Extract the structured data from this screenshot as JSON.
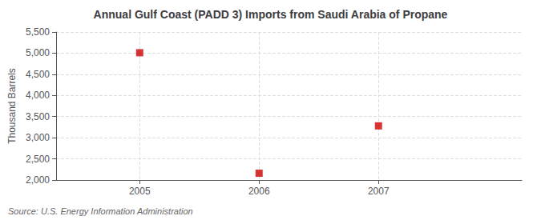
{
  "chart_data": {
    "type": "scatter",
    "title": "Annual Gulf Coast (PADD 3) Imports from Saudi Arabia of Propane",
    "ylabel": "Thousand Barrels",
    "source": "Source: U.S. Energy Information Administration",
    "x": [
      2005,
      2006,
      2007
    ],
    "values": [
      5010,
      2160,
      3280
    ],
    "color": "#cc0000",
    "marker": "square",
    "xlim": [
      2004.3,
      2008.2
    ],
    "xticks": [
      2005,
      2006,
      2007
    ],
    "ylim": [
      2000,
      5500
    ],
    "yticks": [
      {
        "value": 2000,
        "label": "2,000"
      },
      {
        "value": 2500,
        "label": "2,500"
      },
      {
        "value": 3000,
        "label": "3,000"
      },
      {
        "value": 3500,
        "label": "3,500"
      },
      {
        "value": 4000,
        "label": "4,000"
      },
      {
        "value": 4500,
        "label": "4,500"
      },
      {
        "value": 5000,
        "label": "5,000"
      },
      {
        "value": 5500,
        "label": "5,500"
      }
    ],
    "grid": true
  }
}
